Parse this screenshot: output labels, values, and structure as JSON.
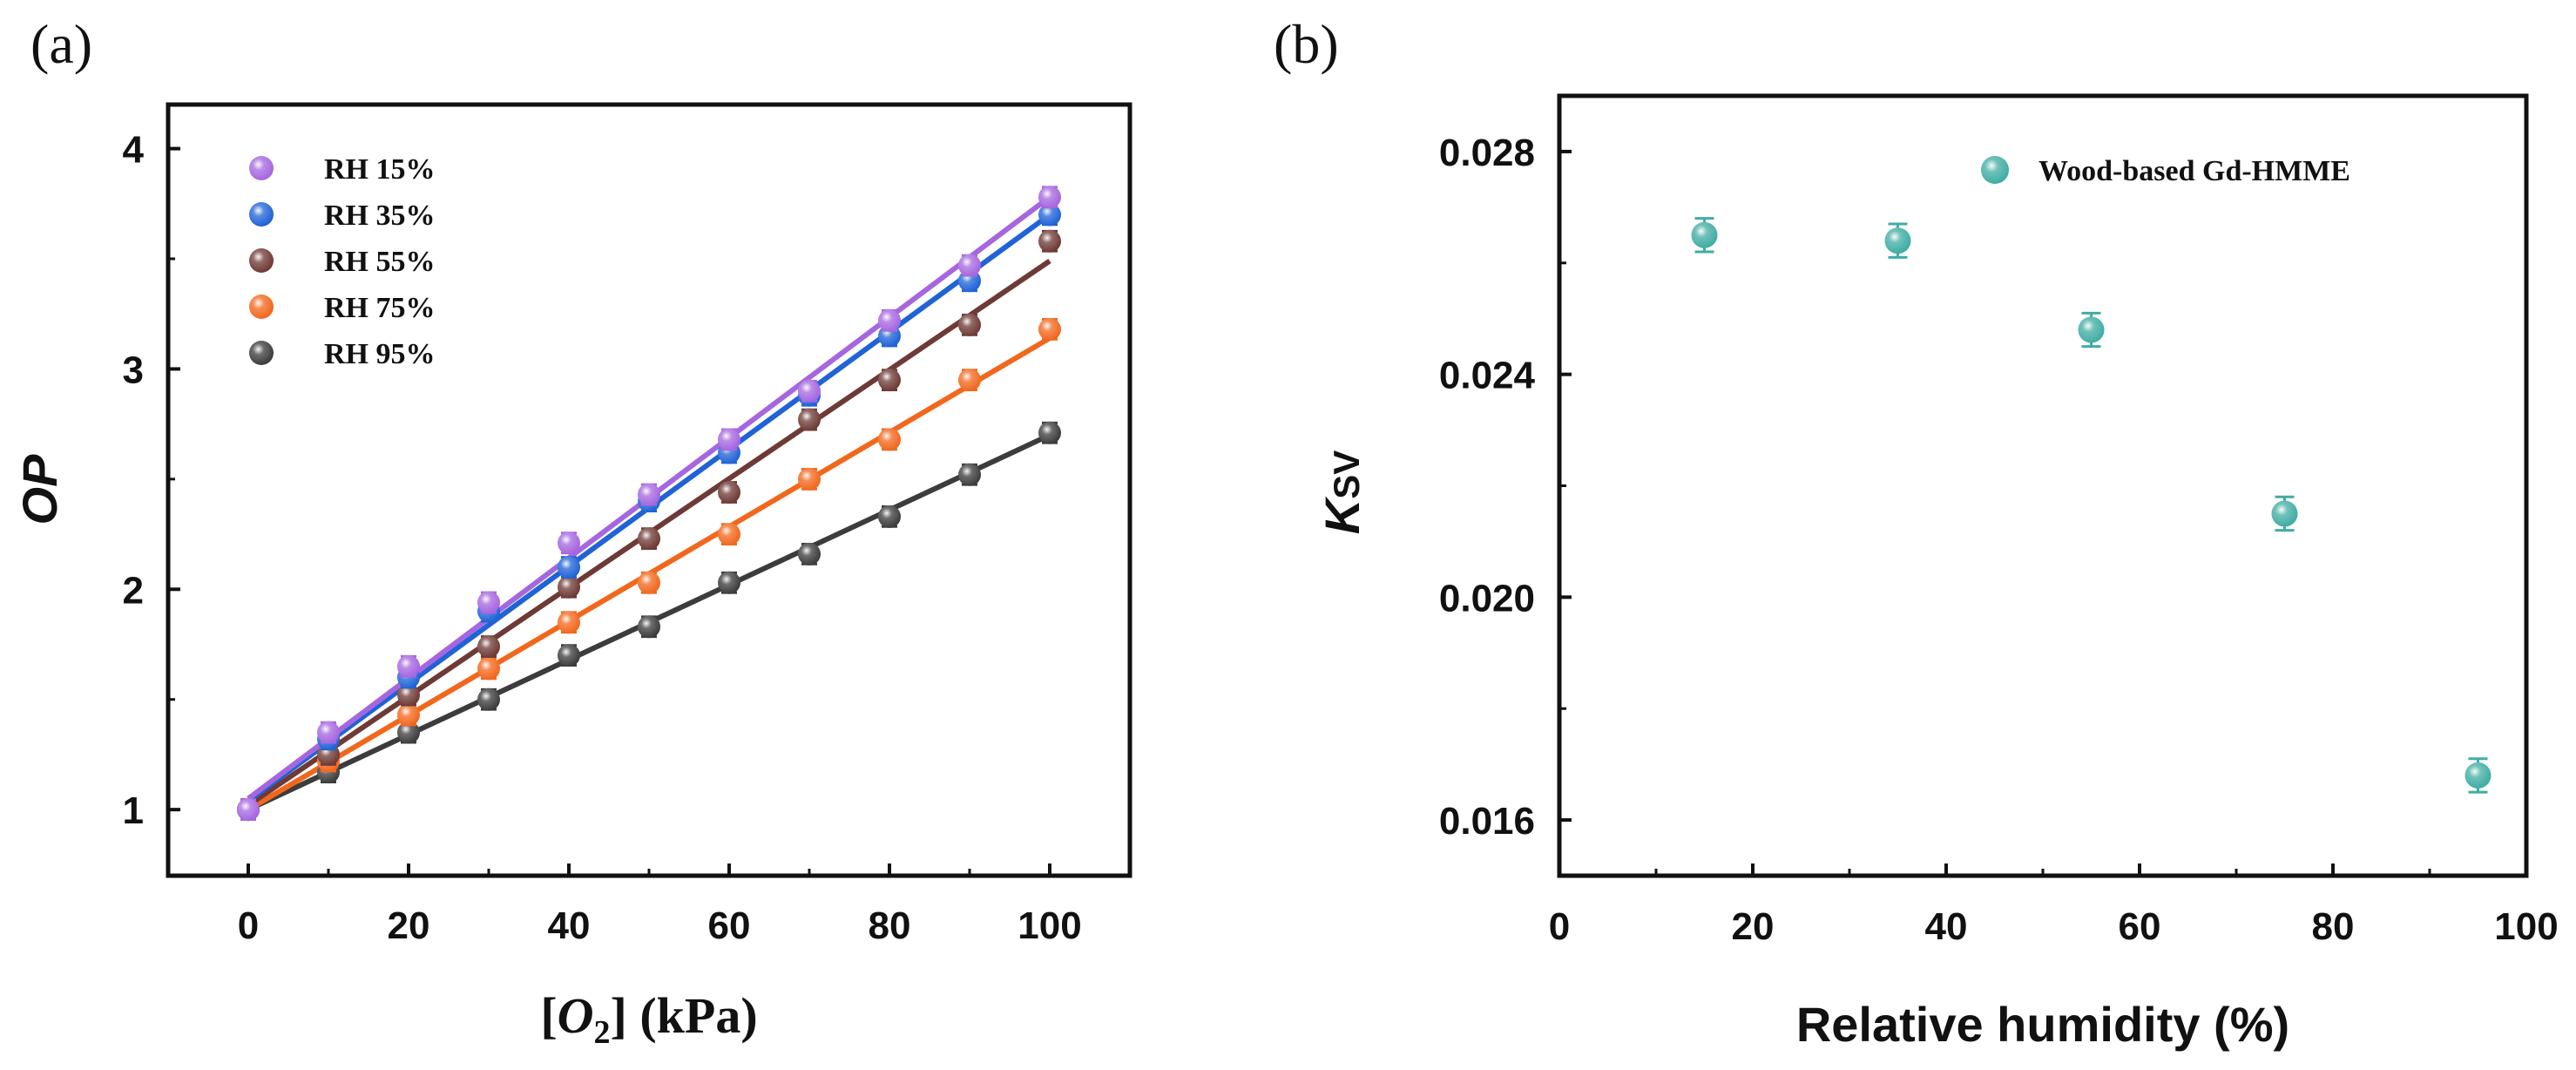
{
  "colors": {
    "rh15": "#a566e0",
    "rh35": "#1f63d6",
    "rh55": "#6e3a35",
    "rh75": "#f2671c",
    "rh95": "#3c3c3c",
    "teal": "#40ada3"
  },
  "chart_data": [
    {
      "type": "scatter",
      "panel_label": "(a)",
      "title": "",
      "xlabel_parts": {
        "open": "[",
        "var": "O",
        "sub": "2",
        "close": "] (kPa)"
      },
      "ylabel": "OP",
      "xlim": [
        -10,
        110
      ],
      "ylim": [
        0.7,
        4.2
      ],
      "xticks": [
        0,
        20,
        40,
        60,
        80,
        100
      ],
      "yticks": [
        1,
        2,
        3,
        4
      ],
      "x": [
        0,
        10,
        20,
        30,
        40,
        50,
        60,
        70,
        80,
        90,
        100
      ],
      "legend_position": "top-left",
      "series": [
        {
          "name": "RH 15%",
          "color_key": "rh15",
          "values": [
            1.0,
            1.35,
            1.65,
            1.94,
            2.21,
            2.43,
            2.68,
            2.9,
            3.22,
            3.47,
            3.78
          ],
          "fit": [
            1.05,
            3.78
          ]
        },
        {
          "name": "RH 35%",
          "color_key": "rh35",
          "values": [
            1.0,
            1.32,
            1.6,
            1.9,
            2.1,
            2.4,
            2.62,
            2.88,
            3.15,
            3.4,
            3.7
          ],
          "fit": [
            1.04,
            3.7
          ]
        },
        {
          "name": "RH 55%",
          "color_key": "rh55",
          "values": [
            1.0,
            1.25,
            1.52,
            1.74,
            2.01,
            2.23,
            2.44,
            2.77,
            2.95,
            3.2,
            3.58
          ],
          "fit": [
            1.02,
            3.49
          ]
        },
        {
          "name": "RH 75%",
          "color_key": "rh75",
          "values": [
            1.0,
            1.22,
            1.43,
            1.64,
            1.85,
            2.03,
            2.25,
            2.5,
            2.68,
            2.95,
            3.18
          ],
          "fit": [
            1.0,
            3.14
          ]
        },
        {
          "name": "RH 95%",
          "color_key": "rh95",
          "values": [
            1.0,
            1.17,
            1.35,
            1.5,
            1.7,
            1.83,
            2.03,
            2.16,
            2.33,
            2.52,
            2.71
          ],
          "fit": [
            1.0,
            2.7
          ]
        }
      ]
    },
    {
      "type": "scatter",
      "panel_label": "(b)",
      "title": "",
      "xlabel": "Relative humidity (%)",
      "ylabel_main": "K",
      "ylabel_sub": "SV",
      "xlim": [
        0,
        100
      ],
      "ylim": [
        0.015,
        0.029
      ],
      "xticks": [
        "0",
        "20",
        "40",
        "60",
        "80",
        "100"
      ],
      "yticks": [
        "0.016",
        "0.020",
        "0.024",
        "0.028"
      ],
      "legend_position": "top-right",
      "series": [
        {
          "name": "Wood-based Gd-HMME",
          "color_key": "teal",
          "x": [
            15,
            35,
            55,
            75,
            95
          ],
          "values": [
            0.0265,
            0.0264,
            0.0248,
            0.0215,
            0.0168
          ],
          "errors": [
            0.0003,
            0.0003,
            0.0003,
            0.0003,
            0.0003
          ]
        }
      ]
    }
  ]
}
